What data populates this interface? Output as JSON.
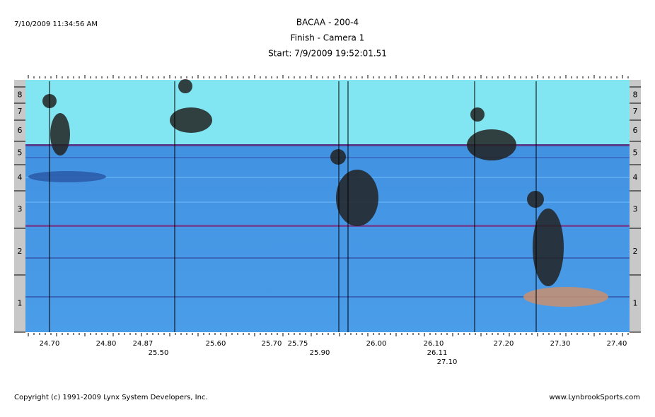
{
  "header": {
    "timestamp": "7/10/2009 11:34:56 AM",
    "title": "BACAA - 200-4",
    "camera": "Finish - Camera 1",
    "start": "Start: 7/9/2009 19:52:01.51"
  },
  "lanes": [
    "8",
    "7",
    "6",
    "5",
    "4",
    "3",
    "2",
    "1"
  ],
  "time_labels": [
    "24.70",
    "24.80",
    "24.87",
    "25.60",
    "25.70",
    "25.75",
    "26.00",
    "26.10",
    "27.20",
    "27.30",
    "27.40",
    "25.50",
    "25.90",
    "26.11",
    "27.10"
  ],
  "footer": {
    "copyright": "Copyright (c) 1991-2009 Lynx System Developers, Inc.",
    "website": "www.LynbrookSports.com"
  }
}
